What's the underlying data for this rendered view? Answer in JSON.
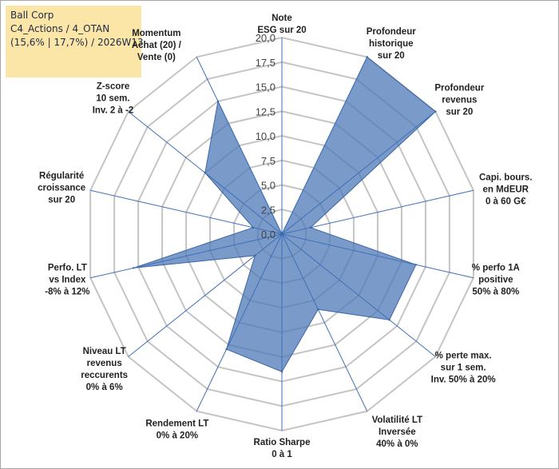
{
  "header": {
    "line1": "Ball Corp",
    "line2": "C4_Actions / 4_OTAN",
    "line3": "(15,6% | 17,7%) / 2026W13"
  },
  "chart_data": {
    "type": "radar",
    "rmax": 20,
    "step": 2.5,
    "ticks": [
      "0,0",
      "2,5",
      "5,0",
      "7,5",
      "10,0",
      "12,5",
      "15,0",
      "17,5",
      "20,0"
    ],
    "grid": true,
    "colors": {
      "fill": "#4e79b8",
      "fill_opacity": 0.75,
      "stroke": "#3b64a5",
      "grid": "#c4c4c4",
      "spoke": "#3e6fb6"
    },
    "axes": [
      {
        "label": [
          "Note",
          "ESG sur 20"
        ],
        "value": 0.0
      },
      {
        "label": [
          "Profondeur",
          "historique",
          "sur 20"
        ],
        "value": 20.0
      },
      {
        "label": [
          "Profondeur",
          "revenus",
          "sur 20"
        ],
        "value": 20.0
      },
      {
        "label": [
          "Capi. bours.",
          "en MdEUR",
          "0 à 60 G€"
        ],
        "value": 3.0
      },
      {
        "label": [
          "% perfo 1A",
          "positive",
          "50% à 80%"
        ],
        "value": 14.0
      },
      {
        "label": [
          "% perte max.",
          "sur 1 sem.",
          "Inv. 50% à 20%"
        ],
        "value": 14.0
      },
      {
        "label": [
          "Volatilité LT",
          "Inversée",
          "40% à 0%"
        ],
        "value": 8.5
      },
      {
        "label": [
          "Ratio Sharpe",
          "0 à 1"
        ],
        "value": 14.0
      },
      {
        "label": [
          "Rendement LT",
          "0% à 20%"
        ],
        "value": 13.0
      },
      {
        "label": [
          "Niveau LT",
          "revenus",
          "reccurents",
          "0% à 6%"
        ],
        "value": 3.5
      },
      {
        "label": [
          "Perfo. LT",
          "vs Index",
          "-8% à 12%"
        ],
        "value": 15.5
      },
      {
        "label": [
          "Régularité",
          "croissance",
          "sur 20"
        ],
        "value": 3.0
      },
      {
        "label": [
          "Z-score",
          "10 sem.",
          "Inv. 2 à -2"
        ],
        "value": 10.0
      },
      {
        "label": [
          "Momentum",
          "Achat (20) /",
          "Vente (0)"
        ],
        "value": 15.0
      }
    ]
  }
}
